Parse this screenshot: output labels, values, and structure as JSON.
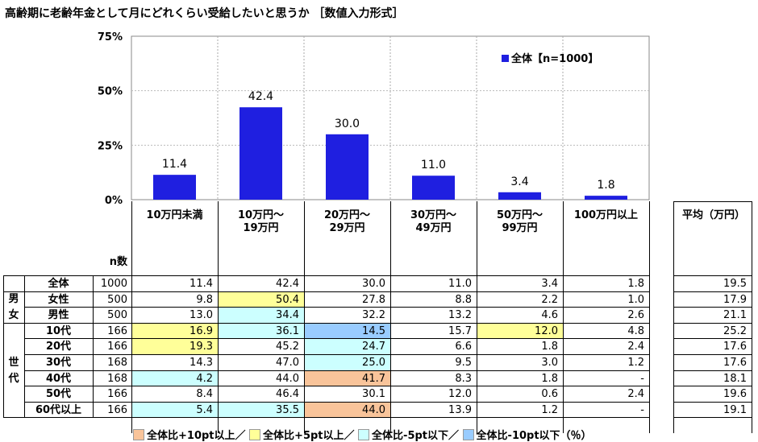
{
  "title": "高齢期に老齢年金として月にどれくらい受給したいと思うか ［数値入力形式］",
  "colors": {
    "bar": "#1F1FE0",
    "plus10": "#F9C49A",
    "plus5": "#FFFF99",
    "minus5": "#CCFFFF",
    "minus10": "#99CCFF"
  },
  "chart_data": {
    "type": "bar",
    "categories": [
      "10万円未満",
      "10万円～\n19万円",
      "20万円～\n29万円",
      "30万円～\n49万円",
      "50万円～\n99万円",
      "100万円以上"
    ],
    "series": [
      {
        "name": "全体【n=1000】",
        "values": [
          11.4,
          42.4,
          30.0,
          11.0,
          3.4,
          1.8
        ]
      }
    ],
    "yticks": [
      "0%",
      "25%",
      "50%",
      "75%"
    ],
    "ylim": [
      0,
      75
    ],
    "legend": "top-right"
  },
  "table": {
    "n_header": "n数",
    "avg_header": "平均（万円）",
    "groups": [
      {
        "label": "",
        "rows": [
          0
        ]
      },
      {
        "label": "男\n女",
        "rows": [
          1,
          2
        ]
      },
      {
        "label": "世\n代",
        "rows": [
          3,
          4,
          5,
          6,
          7,
          8
        ]
      }
    ],
    "rows": [
      {
        "label": "全体",
        "n": "1000",
        "values": [
          "11.4",
          "42.4",
          "30.0",
          "11.0",
          "3.4",
          "1.8"
        ],
        "hl": [
          "",
          "",
          "",
          "",
          "",
          ""
        ],
        "avg": "19.5"
      },
      {
        "label": "女性",
        "n": "500",
        "values": [
          "9.8",
          "50.4",
          "27.8",
          "8.8",
          "2.2",
          "1.0"
        ],
        "hl": [
          "",
          "plus5",
          "",
          "",
          "",
          ""
        ],
        "avg": "17.9"
      },
      {
        "label": "男性",
        "n": "500",
        "values": [
          "13.0",
          "34.4",
          "32.2",
          "13.2",
          "4.6",
          "2.6"
        ],
        "hl": [
          "",
          "minus5",
          "",
          "",
          "",
          ""
        ],
        "avg": "21.1"
      },
      {
        "label": "10代",
        "n": "166",
        "values": [
          "16.9",
          "36.1",
          "14.5",
          "15.7",
          "12.0",
          "4.8"
        ],
        "hl": [
          "plus5",
          "minus5",
          "minus10",
          "",
          "plus5",
          ""
        ],
        "avg": "25.2"
      },
      {
        "label": "20代",
        "n": "166",
        "values": [
          "19.3",
          "45.2",
          "24.7",
          "6.6",
          "1.8",
          "2.4"
        ],
        "hl": [
          "plus5",
          "",
          "minus5",
          "",
          "",
          ""
        ],
        "avg": "17.6"
      },
      {
        "label": "30代",
        "n": "168",
        "values": [
          "14.3",
          "47.0",
          "25.0",
          "9.5",
          "3.0",
          "1.2"
        ],
        "hl": [
          "",
          "",
          "minus5",
          "",
          "",
          ""
        ],
        "avg": "17.6"
      },
      {
        "label": "40代",
        "n": "168",
        "values": [
          "4.2",
          "44.0",
          "41.7",
          "8.3",
          "1.8",
          "-"
        ],
        "hl": [
          "minus5",
          "",
          "plus10",
          "",
          "",
          ""
        ],
        "avg": "18.1"
      },
      {
        "label": "50代",
        "n": "166",
        "values": [
          "8.4",
          "46.4",
          "30.1",
          "12.0",
          "0.6",
          "2.4"
        ],
        "hl": [
          "",
          "",
          "",
          "",
          "",
          ""
        ],
        "avg": "19.6"
      },
      {
        "label": "60代以上",
        "n": "166",
        "values": [
          "5.4",
          "35.5",
          "44.0",
          "13.9",
          "1.2",
          "-"
        ],
        "hl": [
          "minus5",
          "minus5",
          "plus10",
          "",
          "",
          ""
        ],
        "avg": "19.1"
      }
    ]
  },
  "legend_note": {
    "plus10": "全体比+10pt以上／",
    "plus5": "全体比+5pt以上／",
    "minus5": "全体比-5pt以下／",
    "minus10": "全体比-10pt以下（％）"
  }
}
